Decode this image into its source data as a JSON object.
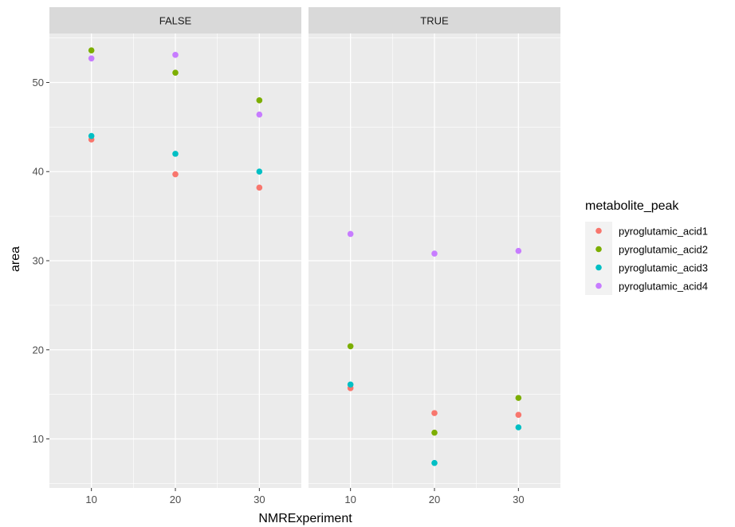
{
  "chart_data": {
    "type": "scatter",
    "xlabel": "NMRExperiment",
    "ylabel": "area",
    "xlim": [
      5,
      35
    ],
    "ylim": [
      4.5,
      55.5
    ],
    "x_ticks": [
      10,
      20,
      30
    ],
    "y_ticks": [
      10,
      20,
      30,
      40,
      50
    ],
    "grid": true,
    "legend": {
      "title": "metabolite_peak",
      "placement": "right",
      "entries": [
        "pyroglutamic_acid1",
        "pyroglutamic_acid2",
        "pyroglutamic_acid3",
        "pyroglutamic_acid4"
      ]
    },
    "colors": [
      "#F8766D",
      "#7CAE00",
      "#00BFC4",
      "#C77CFF"
    ],
    "facets": [
      {
        "label": "FALSE",
        "series": [
          {
            "name": "pyroglutamic_acid1",
            "x": [
              10,
              20,
              30
            ],
            "y": [
              43.6,
              39.7,
              38.2
            ]
          },
          {
            "name": "pyroglutamic_acid2",
            "x": [
              10,
              20,
              30
            ],
            "y": [
              53.6,
              51.1,
              48.0
            ]
          },
          {
            "name": "pyroglutamic_acid3",
            "x": [
              10,
              20,
              30
            ],
            "y": [
              44.0,
              42.0,
              40.0
            ]
          },
          {
            "name": "pyroglutamic_acid4",
            "x": [
              10,
              20,
              30
            ],
            "y": [
              52.7,
              53.1,
              46.4
            ]
          }
        ]
      },
      {
        "label": "TRUE",
        "series": [
          {
            "name": "pyroglutamic_acid1",
            "x": [
              10,
              20,
              30
            ],
            "y": [
              15.7,
              12.9,
              12.7
            ]
          },
          {
            "name": "pyroglutamic_acid2",
            "x": [
              10,
              20,
              30
            ],
            "y": [
              20.4,
              10.7,
              14.6
            ]
          },
          {
            "name": "pyroglutamic_acid3",
            "x": [
              10,
              20,
              30
            ],
            "y": [
              16.1,
              7.3,
              11.3
            ]
          },
          {
            "name": "pyroglutamic_acid4",
            "x": [
              10,
              20,
              30
            ],
            "y": [
              33.0,
              30.8,
              31.1
            ]
          }
        ]
      }
    ]
  }
}
